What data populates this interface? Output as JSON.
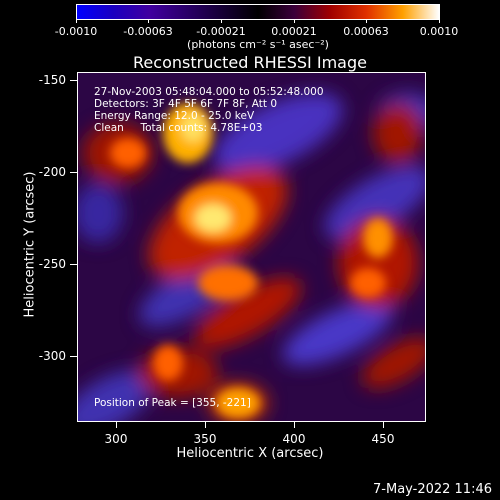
{
  "colorbar": {
    "ticks": [
      "-0.0010",
      "-0.00063",
      "-0.00021",
      "0.00021",
      "0.00063",
      "0.0010"
    ],
    "units": "(photons cm⁻² s⁻¹ asec⁻²)"
  },
  "title": "Reconstructed RHESSI Image",
  "info": {
    "line1": "27-Nov-2003 05:48:04.000 to 05:52:48.000",
    "line2": "Detectors: 3F 4F 5F 6F 7F 8F, Att 0",
    "line3": "Energy Range: 12.0 - 25.0 keV",
    "line4": "Clean     Total counts: 4.78E+03",
    "peak": "Position of Peak = [355, -221]"
  },
  "axes": {
    "xlabel": "Heliocentric X (arcsec)",
    "ylabel": "Heliocentric Y (arcsec)",
    "xticks": [
      "300",
      "350",
      "400",
      "450"
    ],
    "yticks": [
      "-150",
      "-200",
      "-250",
      "-300"
    ]
  },
  "timestamp": "7-May-2022 11:46"
}
